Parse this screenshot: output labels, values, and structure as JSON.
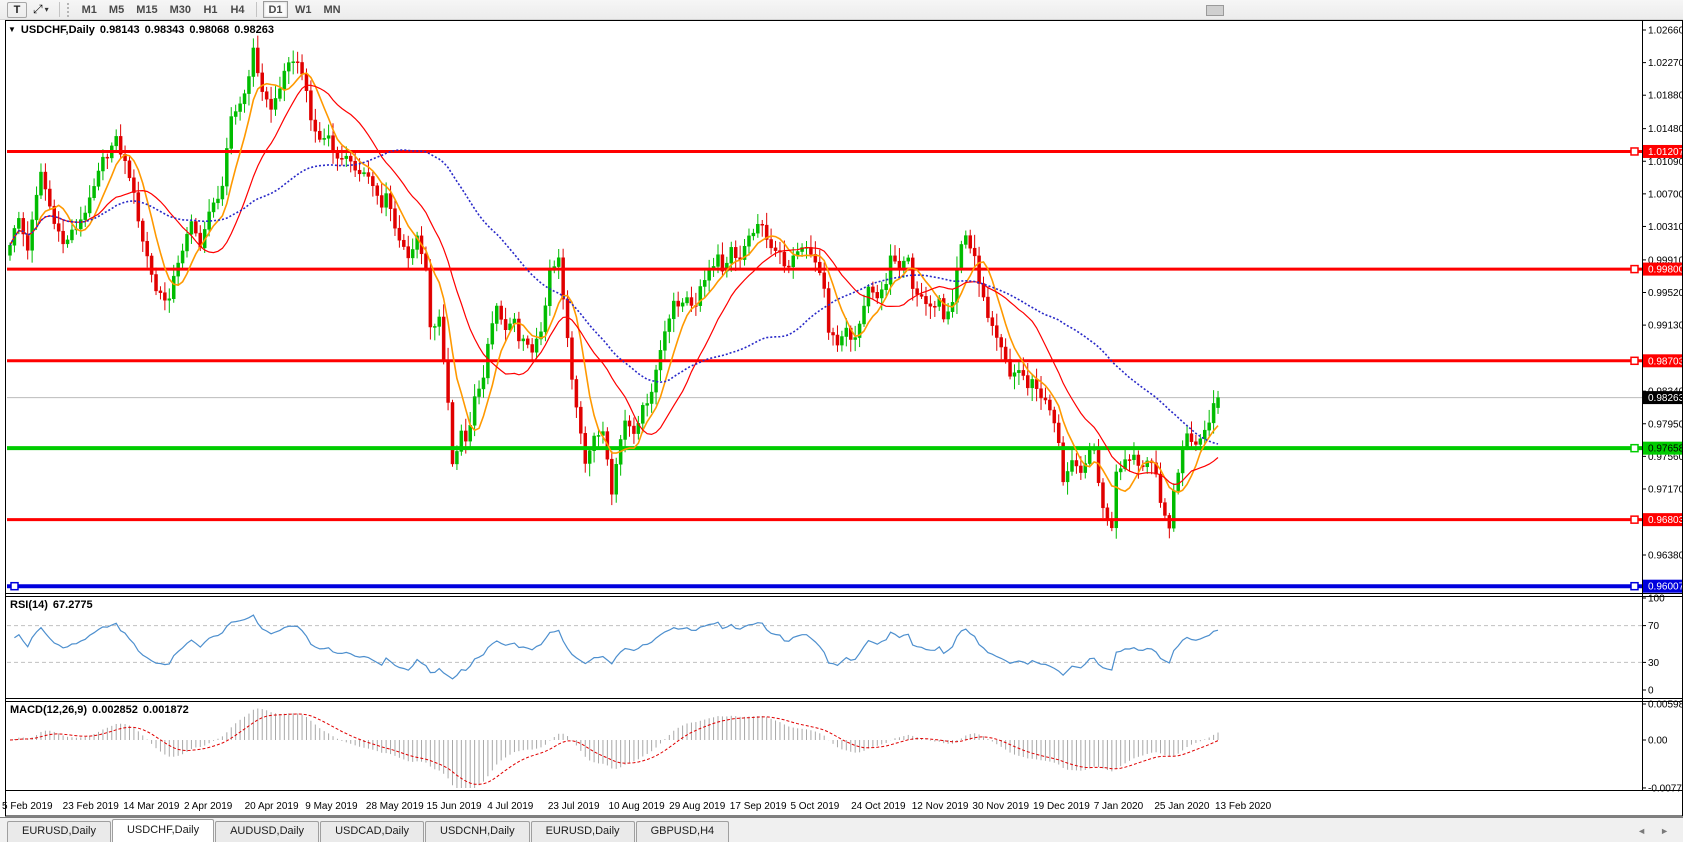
{
  "icons": {
    "text_tool": "T",
    "crosshair_tool": "⤢",
    "caret_down": "▾",
    "collapse_triangle": "▼",
    "tab_scroll_left": "◄",
    "tab_scroll_right": "►"
  },
  "toolbar": {
    "timeframes": [
      "M1",
      "M5",
      "M15",
      "M30",
      "H1",
      "H4",
      "D1",
      "W1",
      "MN"
    ],
    "active_timeframe": "D1"
  },
  "chart_title": {
    "symbol": "USDCHF,Daily",
    "open": "0.98143",
    "high": "0.98343",
    "low": "0.98068",
    "close": "0.98263"
  },
  "rsi_panel": {
    "label": "RSI(14)",
    "value": "67.2775"
  },
  "macd_panel": {
    "label": "MACD(12,26,9)",
    "macd_value": "0.002852",
    "signal_value": "0.001872"
  },
  "tabs": {
    "items": [
      "EURUSD,Daily",
      "USDCHF,Daily",
      "AUDUSD,Daily",
      "USDCAD,Daily",
      "USDCNH,Daily",
      "EURUSD,Daily",
      "GBPUSD,H4"
    ],
    "active_index": 1
  },
  "chart_data": {
    "type": "candlestick",
    "symbol": "USDCHF",
    "timeframe": "Daily",
    "title": "USDCHF,Daily 0.98143 0.98343 0.98068 0.98263",
    "last_candle": {
      "open": 0.98143,
      "high": 0.98343,
      "low": 0.98068,
      "close": 0.98263
    },
    "current_price": 0.98263,
    "current_price_label": "0.98263",
    "candle_up_color": "#00bc00",
    "candle_down_color": "#e00000",
    "y_ticks": [
      "1.02660",
      "1.02270",
      "1.01880",
      "1.01480",
      "1.01090",
      "1.00700",
      "1.00310",
      "0.99910",
      "0.99520",
      "0.99130",
      "0.98340",
      "0.97950",
      "0.97560",
      "0.97170",
      "0.96380"
    ],
    "x_labels": [
      "5 Feb 2019",
      "23 Feb 2019",
      "14 Mar 2019",
      "2 Apr 2019",
      "20 Apr 2019",
      "9 May 2019",
      "28 May 2019",
      "15 Jun 2019",
      "4 Jul 2019",
      "23 Jul 2019",
      "10 Aug 2019",
      "29 Aug 2019",
      "17 Sep 2019",
      "5 Oct 2019",
      "24 Oct 2019",
      "12 Nov 2019",
      "30 Nov 2019",
      "19 Dec 2019",
      "7 Jan 2020",
      "25 Jan 2020",
      "13 Feb 2020"
    ],
    "bar_count": 274,
    "hlines": [
      {
        "price": 1.01207,
        "label": "1.01207",
        "color": "#ff0000",
        "width": 3,
        "text_color": "#ffffff",
        "left_handle": false
      },
      {
        "price": 0.998,
        "label": "0.99800",
        "color": "#ff0000",
        "width": 3,
        "text_color": "#ffffff",
        "left_handle": false
      },
      {
        "price": 0.98703,
        "label": "0.98703",
        "color": "#ff0000",
        "width": 3,
        "text_color": "#ffffff",
        "left_handle": false
      },
      {
        "price": 0.97658,
        "label": "0.97658",
        "color": "#00cc00",
        "width": 4,
        "text_color": "#000000",
        "left_handle": false
      },
      {
        "price": 0.96803,
        "label": "0.96803",
        "color": "#ff0000",
        "width": 3,
        "text_color": "#ffffff",
        "left_handle": false
      },
      {
        "price": 0.96007,
        "label": "0.96007",
        "color": "#0000dd",
        "width": 4,
        "text_color": "#ffffff",
        "left_handle": true
      }
    ],
    "moving_averages": [
      {
        "period": 7,
        "color": "#ff9900",
        "width": 1.6,
        "dash": ""
      },
      {
        "period": 18,
        "color": "#ff0000",
        "width": 1.2,
        "dash": ""
      },
      {
        "period": 50,
        "color": "#2929c8",
        "width": 1.6,
        "dash": "2,2"
      }
    ],
    "rsi": {
      "period": 14,
      "current": 67.2775,
      "color": "#4d8fce",
      "ticks": [
        "100",
        "70",
        "30",
        "0"
      ],
      "tick_values": [
        100,
        70,
        30,
        0
      ],
      "level_lines": [
        70,
        30
      ]
    },
    "macd": {
      "fast": 12,
      "slow": 26,
      "signal": 9,
      "current_macd": 0.002852,
      "current_signal": 0.001872,
      "histogram_color": "#a8a8a8",
      "signal_color": "#e00000",
      "ticks": [
        "0.005986",
        "0.00",
        "-0.007733"
      ],
      "tick_values": [
        0.005986,
        0,
        -0.007733
      ]
    },
    "close_anchors": [
      [
        0,
        1.0012
      ],
      [
        2,
        1.004
      ],
      [
        4,
        1.0005
      ],
      [
        7,
        1.0096
      ],
      [
        9,
        1.0055
      ],
      [
        12,
        1.0009
      ],
      [
        15,
        1.003
      ],
      [
        18,
        1.006
      ],
      [
        21,
        1.011
      ],
      [
        24,
        1.0134
      ],
      [
        27,
        1.0093
      ],
      [
        30,
        1.0015
      ],
      [
        33,
        0.9955
      ],
      [
        36,
        0.9943
      ],
      [
        38,
        0.999
      ],
      [
        41,
        1.0033
      ],
      [
        43,
        1.001
      ],
      [
        45,
        1.0045
      ],
      [
        48,
        1.008
      ],
      [
        50,
        1.0158
      ],
      [
        53,
        1.019
      ],
      [
        55,
        1.024
      ],
      [
        57,
        1.0194
      ],
      [
        59,
        1.017
      ],
      [
        62,
        1.0212
      ],
      [
        64,
        1.0232
      ],
      [
        66,
        1.0218
      ],
      [
        68,
        1.0158
      ],
      [
        70,
        1.0134
      ],
      [
        72,
        1.014
      ],
      [
        74,
        1.011
      ],
      [
        76,
        1.0118
      ],
      [
        78,
        1.0093
      ],
      [
        80,
        1.01
      ],
      [
        82,
        1.0081
      ],
      [
        84,
        1.0051
      ],
      [
        85,
        1.0069
      ],
      [
        88,
        1.0015
      ],
      [
        90,
        0.9997
      ],
      [
        92,
        1.0015
      ],
      [
        94,
        0.9979
      ],
      [
        95,
        0.9907
      ],
      [
        97,
        0.9919
      ],
      [
        99,
        0.9823
      ],
      [
        100,
        0.9746
      ],
      [
        102,
        0.9788
      ],
      [
        103,
        0.977
      ],
      [
        105,
        0.9823
      ],
      [
        107,
        0.9847
      ],
      [
        108,
        0.9895
      ],
      [
        110,
        0.9931
      ],
      [
        112,
        0.9907
      ],
      [
        114,
        0.9919
      ],
      [
        115,
        0.9889
      ],
      [
        117,
        0.9895
      ],
      [
        118,
        0.9877
      ],
      [
        120,
        0.9907
      ],
      [
        122,
        0.9973
      ],
      [
        124,
        0.9991
      ],
      [
        125,
        0.9943
      ],
      [
        127,
        0.9847
      ],
      [
        129,
        0.9787
      ],
      [
        130,
        0.9752
      ],
      [
        132,
        0.9776
      ],
      [
        134,
        0.9788
      ],
      [
        135,
        0.9758
      ],
      [
        136,
        0.9716
      ],
      [
        138,
        0.9776
      ],
      [
        139,
        0.98
      ],
      [
        141,
        0.9788
      ],
      [
        143,
        0.9812
      ],
      [
        145,
        0.9836
      ],
      [
        146,
        0.9859
      ],
      [
        148,
        0.9907
      ],
      [
        150,
        0.9943
      ],
      [
        151,
        0.9931
      ],
      [
        153,
        0.9949
      ],
      [
        155,
        0.9931
      ],
      [
        156,
        0.9961
      ],
      [
        158,
        0.9979
      ],
      [
        160,
        0.9997
      ],
      [
        161,
        0.9979
      ],
      [
        163,
        1.0003
      ],
      [
        165,
        0.9991
      ],
      [
        167,
        1.0015
      ],
      [
        168,
        1.0027
      ],
      [
        170,
        1.003
      ],
      [
        172,
        1.0009
      ],
      [
        174,
        0.9997
      ],
      [
        176,
        0.9979
      ],
      [
        178,
        1.0003
      ],
      [
        180,
        1.0009
      ],
      [
        182,
        0.9991
      ],
      [
        184,
        0.9955
      ],
      [
        185,
        0.9907
      ],
      [
        187,
        0.9889
      ],
      [
        189,
        0.9907
      ],
      [
        191,
        0.9895
      ],
      [
        193,
        0.9931
      ],
      [
        194,
        0.9955
      ],
      [
        196,
        0.9943
      ],
      [
        198,
        0.9961
      ],
      [
        199,
        0.9997
      ],
      [
        201,
        0.9979
      ],
      [
        203,
        0.9991
      ],
      [
        204,
        0.9961
      ],
      [
        206,
        0.9943
      ],
      [
        208,
        0.9931
      ],
      [
        210,
        0.9949
      ],
      [
        211,
        0.9925
      ],
      [
        213,
        0.9943
      ],
      [
        214,
        0.9979
      ],
      [
        215,
        1.0009
      ],
      [
        216,
        1.0021
      ],
      [
        218,
        0.9991
      ],
      [
        220,
        0.9943
      ],
      [
        221,
        0.9919
      ],
      [
        223,
        0.9895
      ],
      [
        225,
        0.9871
      ],
      [
        226,
        0.9853
      ],
      [
        228,
        0.9859
      ],
      [
        230,
        0.9841
      ],
      [
        231,
        0.9847
      ],
      [
        233,
        0.9829
      ],
      [
        235,
        0.9811
      ],
      [
        237,
        0.9775
      ],
      [
        238,
        0.9728
      ],
      [
        240,
        0.9746
      ],
      [
        242,
        0.9734
      ],
      [
        243,
        0.9752
      ],
      [
        245,
        0.9764
      ],
      [
        247,
        0.9692
      ],
      [
        249,
        0.9674
      ],
      [
        250,
        0.974
      ],
      [
        252,
        0.9752
      ],
      [
        254,
        0.9758
      ],
      [
        255,
        0.9746
      ],
      [
        257,
        0.9752
      ],
      [
        259,
        0.9734
      ],
      [
        260,
        0.9704
      ],
      [
        262,
        0.9668
      ],
      [
        263,
        0.9716
      ],
      [
        265,
        0.9764
      ],
      [
        266,
        0.9782
      ],
      [
        268,
        0.977
      ],
      [
        270,
        0.9788
      ],
      [
        271,
        0.98
      ],
      [
        272,
        0.9824
      ],
      [
        273,
        0.98263
      ]
    ]
  }
}
